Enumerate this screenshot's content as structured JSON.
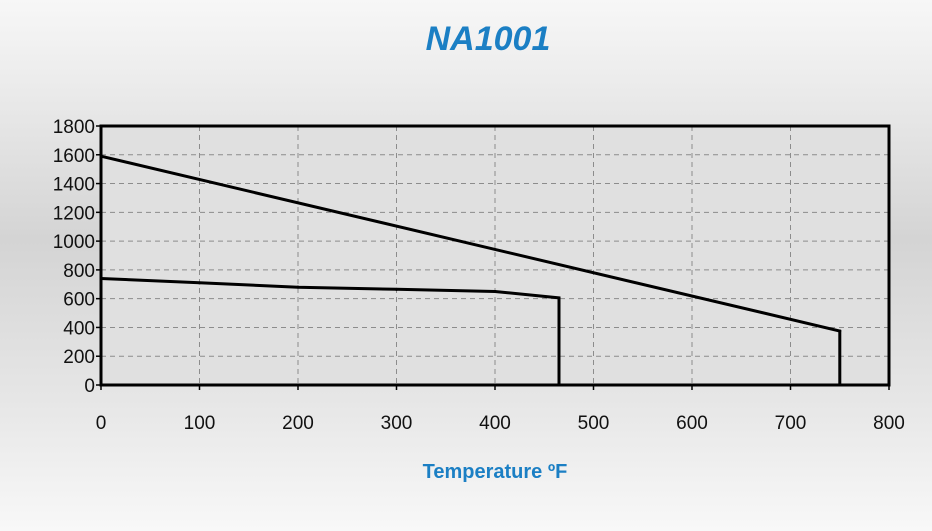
{
  "chart_data": {
    "type": "line",
    "title": "NA1001",
    "xlabel": "Temperature ºF",
    "ylabel": "",
    "xlim": [
      0,
      800
    ],
    "ylim": [
      0,
      1800
    ],
    "xticks": [
      0,
      100,
      200,
      300,
      400,
      500,
      600,
      700,
      800
    ],
    "yticks": [
      0,
      200,
      400,
      600,
      800,
      1000,
      1200,
      1400,
      1600,
      1800
    ],
    "grid": true,
    "legend": "none",
    "line_color": "#000000",
    "title_color": "#1b7fc4",
    "series": [
      {
        "points": [
          {
            "x": 0,
            "y": 1590
          },
          {
            "x": 750,
            "y": 375
          },
          {
            "x": 750,
            "y": 0
          }
        ]
      },
      {
        "points": [
          {
            "x": 0,
            "y": 740
          },
          {
            "x": 100,
            "y": 710
          },
          {
            "x": 200,
            "y": 680
          },
          {
            "x": 300,
            "y": 665
          },
          {
            "x": 400,
            "y": 650
          },
          {
            "x": 465,
            "y": 605
          },
          {
            "x": 465,
            "y": 0
          }
        ]
      }
    ]
  }
}
